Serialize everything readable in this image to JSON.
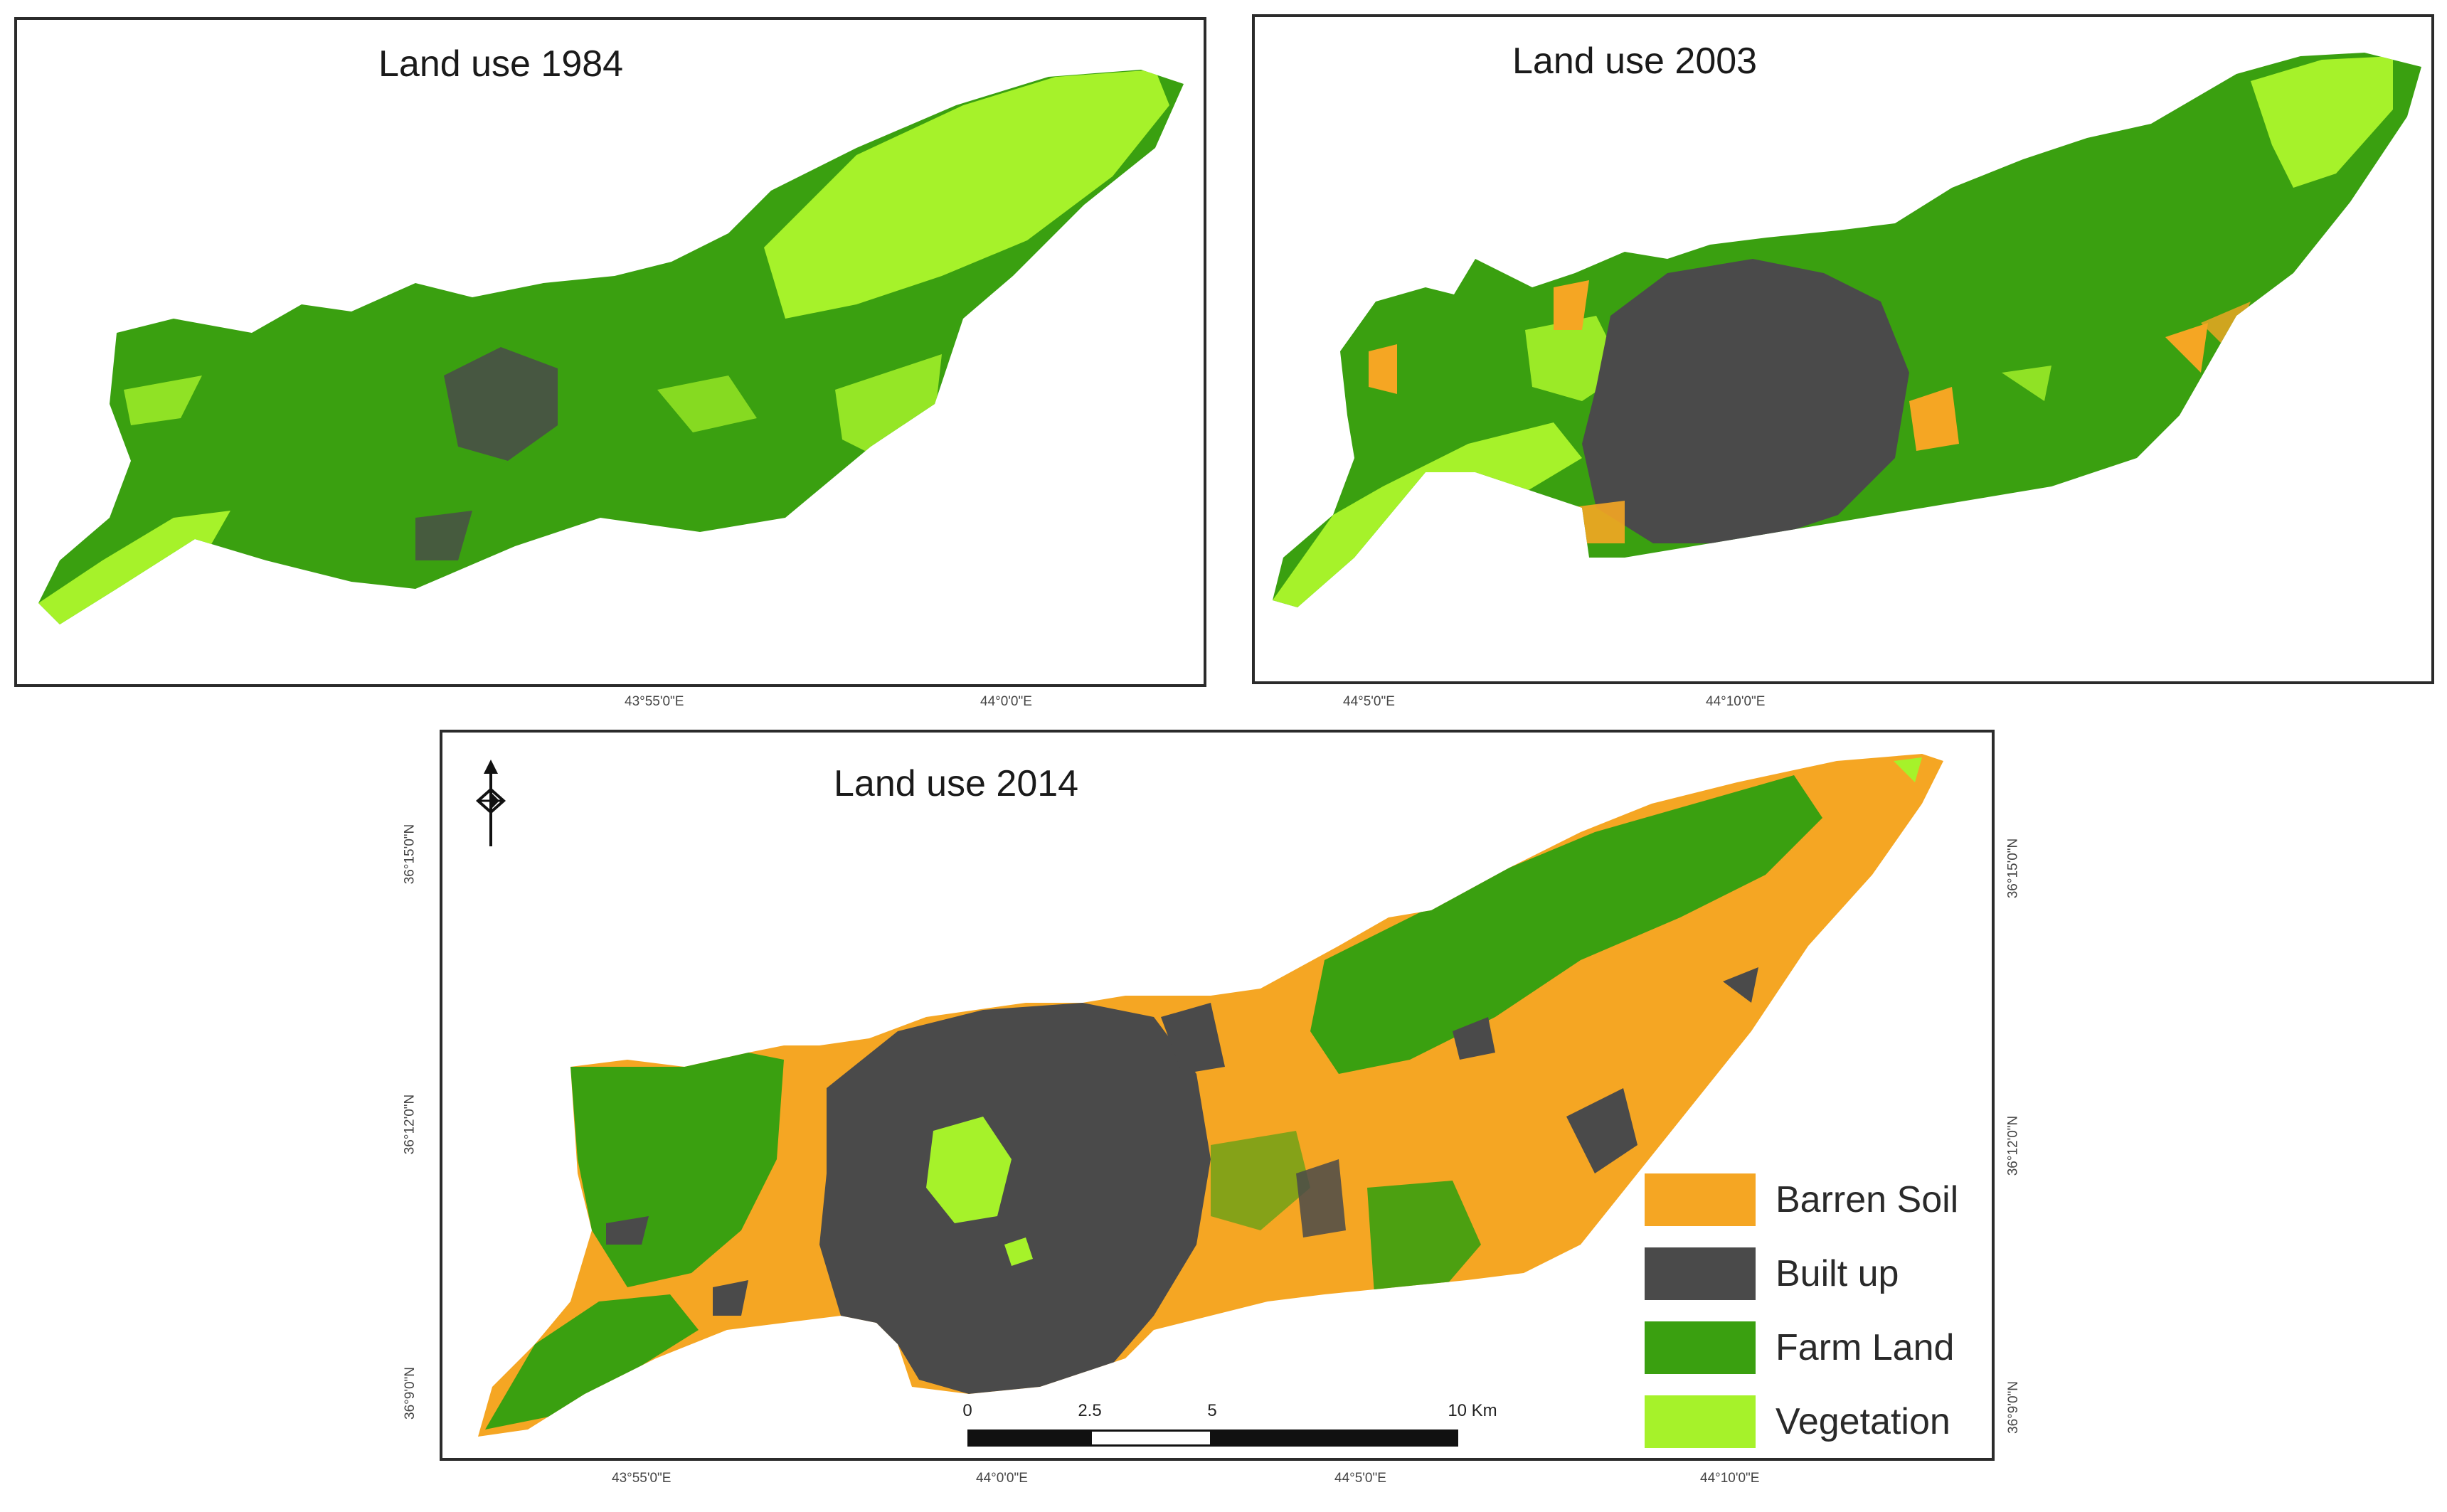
{
  "maps": {
    "m1984": {
      "title": "Land use 1984"
    },
    "m2003": {
      "title": "Land use 2003"
    },
    "m2014": {
      "title": "Land use 2014"
    }
  },
  "coords": {
    "top_lon_1": "43°55'0\"E",
    "top_lon_2": "44°0'0\"E",
    "top_lon_3": "44°5'0\"E",
    "top_lon_4": "44°10'0\"E",
    "bottom_lon_1": "43°55'0\"E",
    "bottom_lon_2": "44°0'0\"E",
    "bottom_lon_3": "44°5'0\"E",
    "bottom_lon_4": "44°10'0\"E",
    "left_lat_1": "36°15'0\"N",
    "left_lat_2": "36°12'0\"N",
    "left_lat_3": "36°9'0\"N",
    "right_lat_1": "36°15'0\"N",
    "right_lat_2": "36°12'0\"N",
    "right_lat_3": "36°9'0\"N"
  },
  "legend": {
    "items": [
      {
        "label": "Barren Soil",
        "color": "#f5a623"
      },
      {
        "label": "Built up",
        "color": "#4a4a4a"
      },
      {
        "label": "Farm Land",
        "color": "#3aa010"
      },
      {
        "label": "Vegetation",
        "color": "#a6f22a"
      }
    ]
  },
  "scale_bar": {
    "labels": [
      "0",
      "2.5",
      "5",
      "10 Km"
    ]
  },
  "icons": {
    "north_arrow": "north-arrow-icon"
  },
  "colors": {
    "barren": "#f5a623",
    "built": "#4a4a4a",
    "farm": "#3aa010",
    "vegetation": "#a6f22a",
    "frame": "#2b2b2b"
  }
}
